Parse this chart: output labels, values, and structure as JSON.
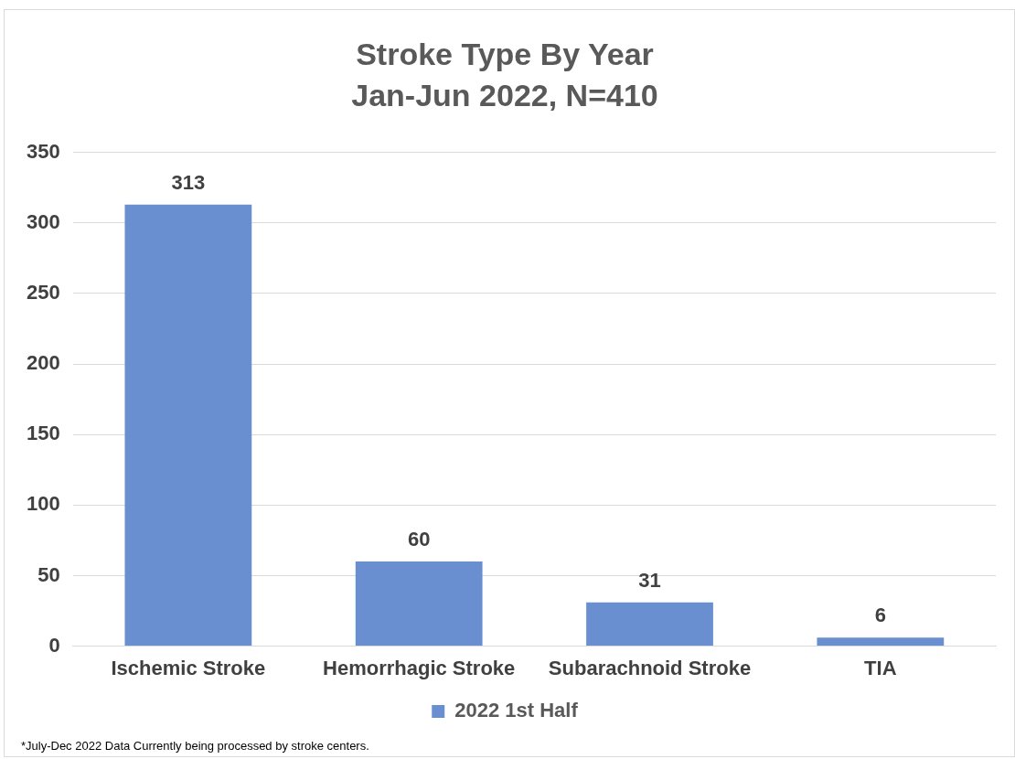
{
  "chart_data": {
    "type": "bar",
    "title": "Stroke Type By Year",
    "subtitle": "Jan-Jun 2022, N=410",
    "categories": [
      "Ischemic Stroke",
      "Hemorrhagic Stroke",
      "Subarachnoid Stroke",
      "TIA"
    ],
    "series": [
      {
        "name": "2022 1st Half",
        "color": "#6a8fd0",
        "values": [
          313,
          60,
          31,
          6
        ]
      }
    ],
    "ylim": [
      0,
      350
    ],
    "yticks": [
      0,
      50,
      100,
      150,
      200,
      250,
      300,
      350
    ],
    "grid": "y",
    "legend": "bottom",
    "data_labels": true,
    "annotations": [
      "*July-Dec 2022 Data Currently being processed by stroke centers."
    ]
  }
}
